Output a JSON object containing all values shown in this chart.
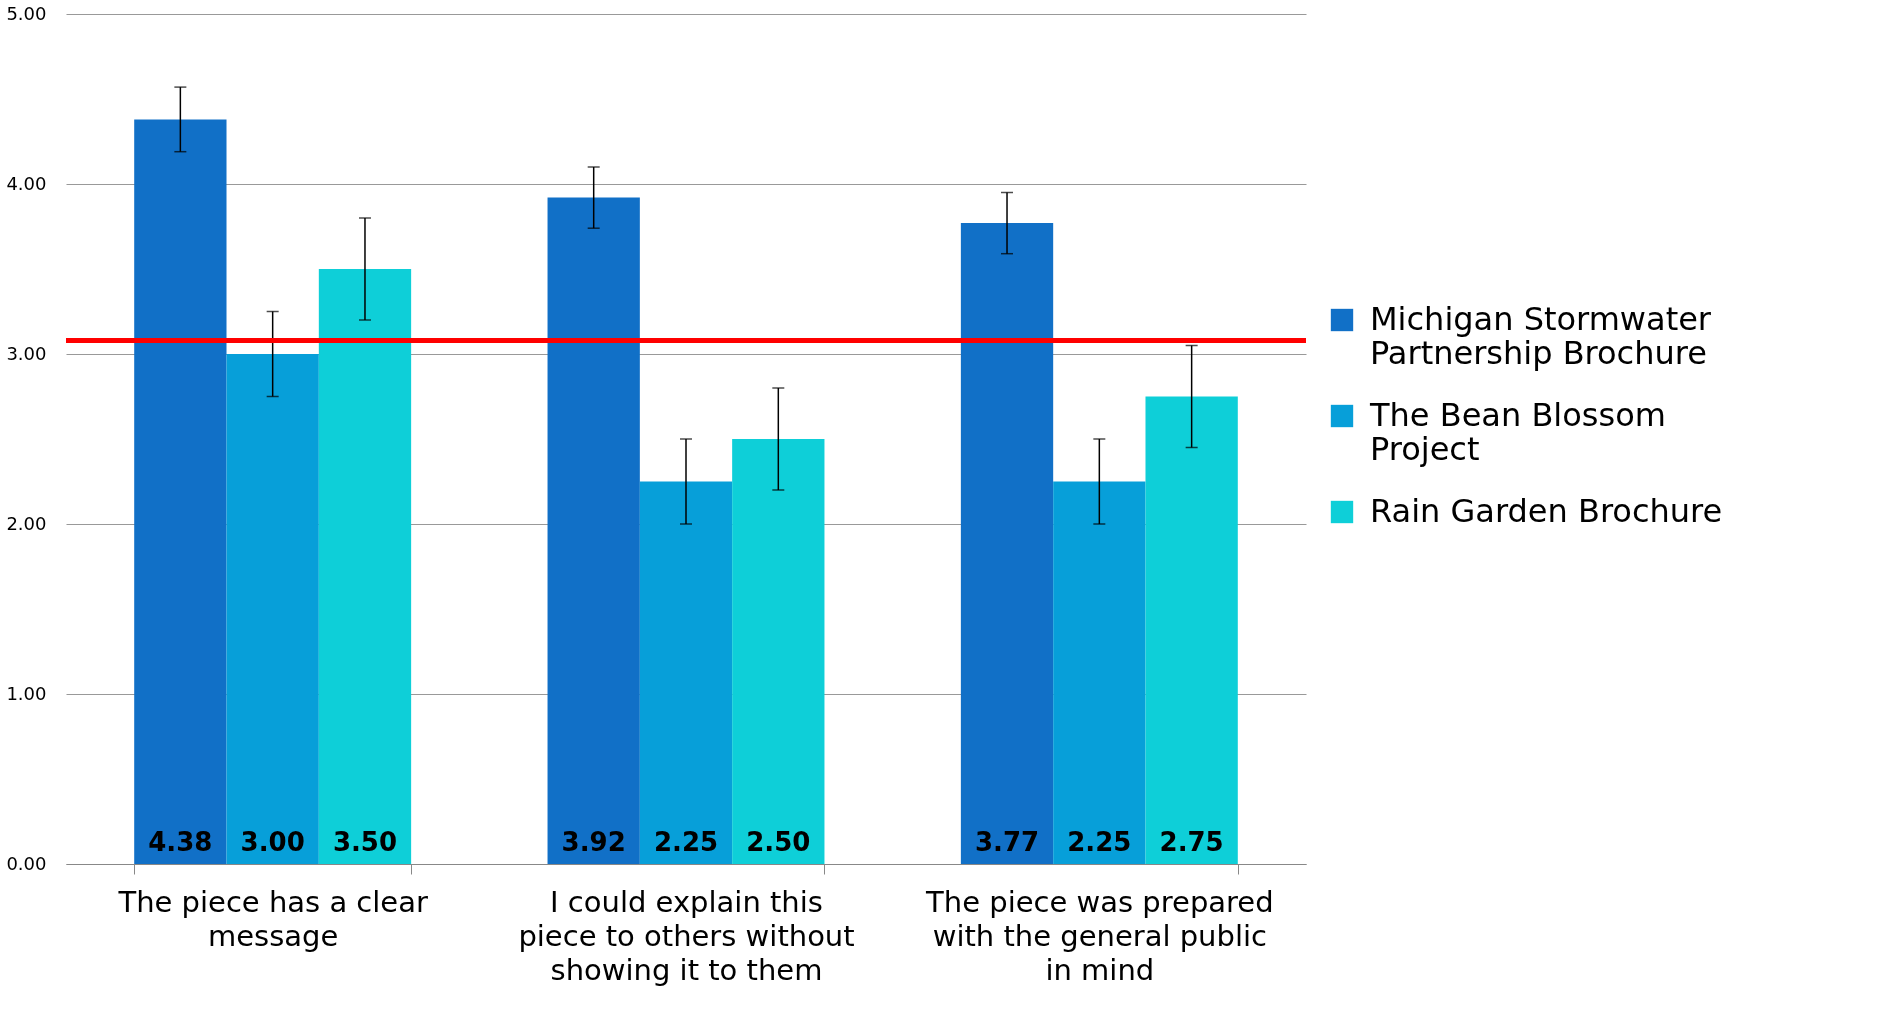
{
  "chart_data": {
    "type": "bar",
    "categories": [
      "The piece has a clear message",
      "I could explain this piece to others without showing it to them",
      "The piece was prepared with the general public in mind"
    ],
    "series": [
      {
        "name": "Michigan Stormwater Partnership Brochure",
        "color": "#1170c7",
        "values": [
          4.38,
          3.92,
          3.77
        ],
        "value_labels": [
          "4.38",
          "3.92",
          "3.77"
        ],
        "errors": [
          0.19,
          0.18,
          0.18
        ]
      },
      {
        "name": "The Bean Blossom Project",
        "color": "#079fd9",
        "values": [
          3.0,
          2.25,
          2.25
        ],
        "value_labels": [
          "3.00",
          "2.25",
          "2.25"
        ],
        "errors": [
          0.25,
          0.25,
          0.25
        ]
      },
      {
        "name": "Rain Garden Brochure",
        "color": "#0ecfd8",
        "values": [
          3.5,
          2.5,
          2.75
        ],
        "value_labels": [
          "3.50",
          "2.50",
          "2.75"
        ],
        "errors": [
          0.3,
          0.3,
          0.3
        ]
      }
    ],
    "ylim": [
      0,
      5
    ],
    "yticks": [
      {
        "value": 0,
        "label": "0.00"
      },
      {
        "value": 1,
        "label": "1.00"
      },
      {
        "value": 2,
        "label": "2.00"
      },
      {
        "value": 3,
        "label": "3.00"
      },
      {
        "value": 4,
        "label": "4.00"
      },
      {
        "value": 5,
        "label": "5.00"
      }
    ],
    "ref_lines": [
      {
        "axis": "y",
        "value": 3.08,
        "color": "#ff0000"
      }
    ],
    "grid": "y",
    "legend": "right"
  }
}
